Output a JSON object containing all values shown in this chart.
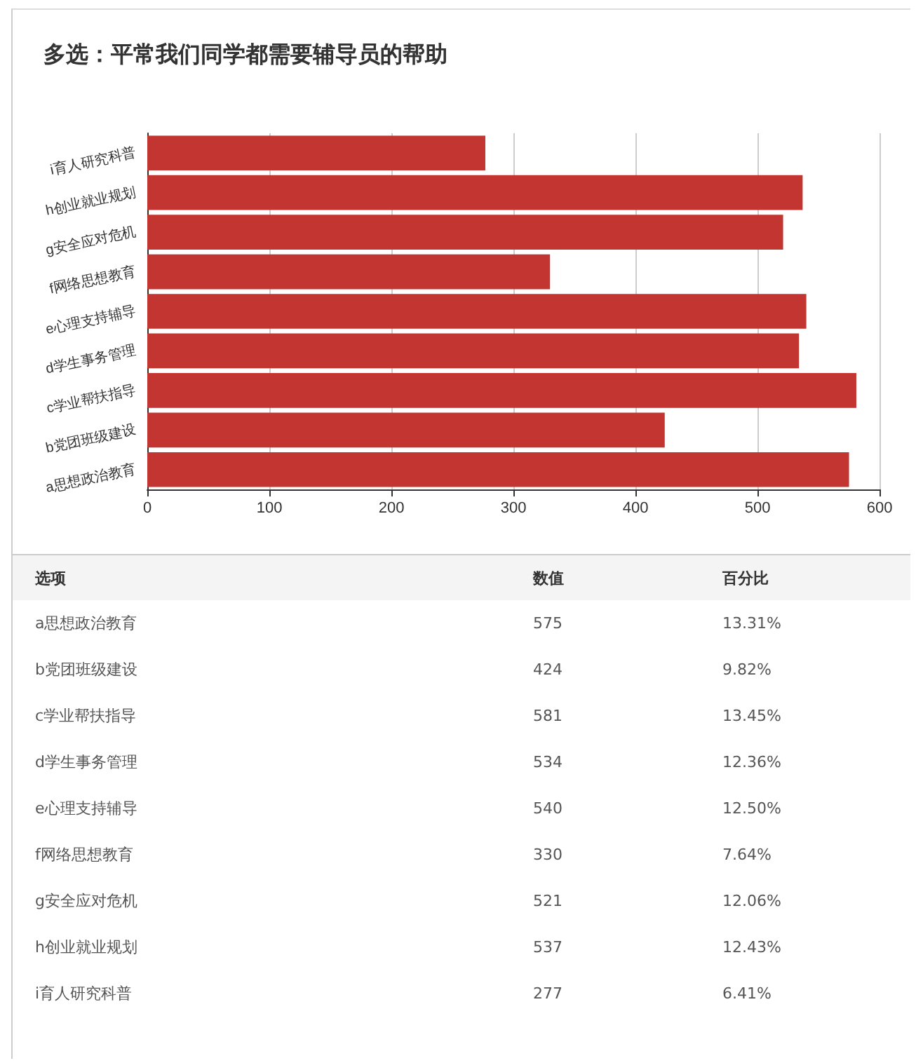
{
  "chart_data": {
    "type": "bar",
    "orientation": "horizontal",
    "title": "多选：平常我们同学都需要辅导员的帮助",
    "categories": [
      "i育人研究科普",
      "h创业就业规划",
      "g安全应对危机",
      "f网络思想教育",
      "e心理支持辅导",
      "d学生事务管理",
      "c学业帮扶指导",
      "b党团班级建设",
      "a思想政治教育"
    ],
    "values": [
      277,
      537,
      521,
      330,
      540,
      534,
      581,
      424,
      575
    ],
    "color": "#c23531",
    "xlim": [
      0,
      600
    ],
    "xticks": [
      0,
      100,
      200,
      300,
      400,
      500,
      600
    ],
    "grid": "x",
    "annotations": [
      "选项",
      "数值",
      "百分比",
      "a思想政治教育",
      "575",
      "13.31%",
      "b党团班级建设",
      "424",
      "9.82%",
      "c学业帮扶指导",
      "581",
      "13.45%",
      "d学生事务管理",
      "534",
      "12.36%",
      "e心理支持辅导",
      "540",
      "12.50%",
      "f网络思想教育",
      "330",
      "7.64%",
      "g安全应对危机",
      "521",
      "12.06%",
      "h创业就业规划",
      "537",
      "12.43%",
      "i育人研究科普",
      "277",
      "6.41%"
    ]
  }
}
